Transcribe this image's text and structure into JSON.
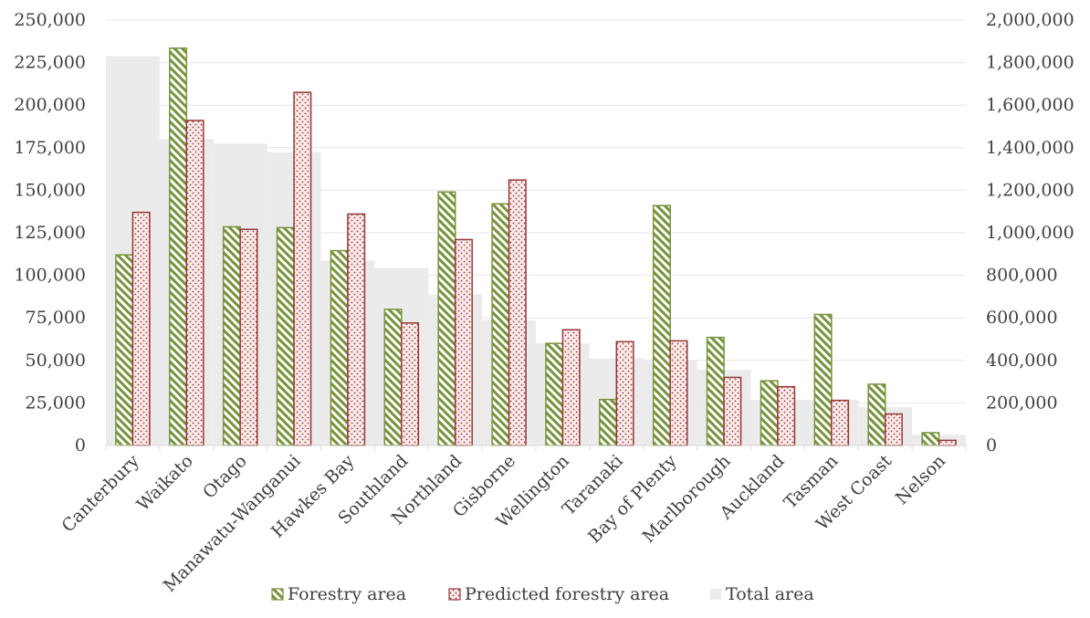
{
  "chart_data": {
    "type": "bar",
    "title": "",
    "xlabel": "",
    "ylabel": "",
    "categories": [
      "Canterbury",
      "Waikato",
      "Otago",
      "Manawatu-Wanganui",
      "Hawkes Bay",
      "Southland",
      "Northland",
      "Gisborne",
      "Wellington",
      "Taranaki",
      "Bay of Plenty",
      "Marlborough",
      "Auckland",
      "Tasman",
      "West Coast",
      "Nelson"
    ],
    "series": [
      {
        "name": "Forestry area",
        "axis": "left",
        "color": "#77933c",
        "pattern": "diagonal-stripes",
        "values": [
          112000,
          233500,
          128500,
          128000,
          114500,
          80000,
          149000,
          142000,
          60000,
          27000,
          141000,
          63500,
          38000,
          77000,
          36000,
          7500
        ]
      },
      {
        "name": "Predicted forestry area",
        "axis": "left",
        "color": "#953735",
        "pattern": "dots",
        "values": [
          137000,
          191000,
          127000,
          207500,
          136000,
          72000,
          121000,
          156000,
          68000,
          61000,
          61500,
          40000,
          34500,
          26500,
          18500,
          3000
        ]
      },
      {
        "name": "Total area",
        "axis": "right",
        "color": "#ebebeb",
        "pattern": "solid",
        "values": [
          1830000,
          1440000,
          1420000,
          1380000,
          870000,
          835000,
          710000,
          590000,
          480000,
          410000,
          400000,
          355000,
          215000,
          215000,
          180000,
          50000
        ]
      }
    ],
    "ylim_left": [
      0,
      250000
    ],
    "ylim_right": [
      0,
      2000000
    ],
    "yticks_left": [
      "0",
      "25,000",
      "50,000",
      "75,000",
      "100,000",
      "125,000",
      "150,000",
      "175,000",
      "200,000",
      "225,000",
      "250,000"
    ],
    "yticks_right": [
      "0",
      "200,000",
      "400,000",
      "600,000",
      "800,000",
      "1,000,000",
      "1,200,000",
      "1,400,000",
      "1,600,000",
      "1,800,000",
      "2,000,000"
    ],
    "grid": true,
    "legend_position": "bottom"
  }
}
